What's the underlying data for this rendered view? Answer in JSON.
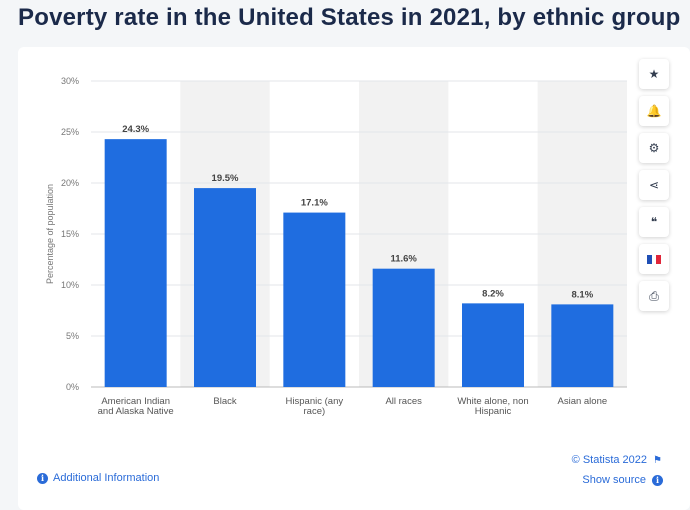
{
  "page": {
    "title": "Poverty rate in the United States in 2021, by ethnic group"
  },
  "toolbar": {
    "items": [
      {
        "name": "star-icon",
        "glyph": "★"
      },
      {
        "name": "bell-icon",
        "glyph": "🔔"
      },
      {
        "name": "gear-icon",
        "glyph": "⚙"
      },
      {
        "name": "share-icon",
        "glyph": "⋖"
      },
      {
        "name": "quote-icon",
        "glyph": "❝"
      },
      {
        "name": "flag-icon",
        "glyph": ""
      },
      {
        "name": "print-icon",
        "glyph": "⎙"
      }
    ]
  },
  "footer": {
    "additional_info": "Additional Information",
    "copyright": "© Statista 2022",
    "show_source": "Show source"
  },
  "colors": {
    "bar": "#1f6de0",
    "band": "#f2f2f2",
    "grid": "#e3e6ea",
    "label": "#555555"
  },
  "chart_data": {
    "type": "bar",
    "title": "Poverty rate in the United States in 2021, by ethnic group",
    "ylabel": "Percentage of population",
    "xlabel": "",
    "ylim": [
      0,
      30
    ],
    "yticks": [
      0,
      5,
      10,
      15,
      20,
      25,
      30
    ],
    "ytick_labels": [
      "0%",
      "5%",
      "10%",
      "15%",
      "20%",
      "25%",
      "30%"
    ],
    "categories": [
      [
        "American Indian",
        "and Alaska Native"
      ],
      [
        "Black"
      ],
      [
        "Hispanic (any",
        "race)"
      ],
      [
        "All races"
      ],
      [
        "White alone, non",
        "Hispanic"
      ],
      [
        "Asian alone"
      ]
    ],
    "values": [
      24.3,
      19.5,
      17.1,
      11.6,
      8.2,
      8.1
    ],
    "value_labels": [
      "24.3%",
      "19.5%",
      "17.1%",
      "11.6%",
      "8.2%",
      "8.1%"
    ]
  }
}
